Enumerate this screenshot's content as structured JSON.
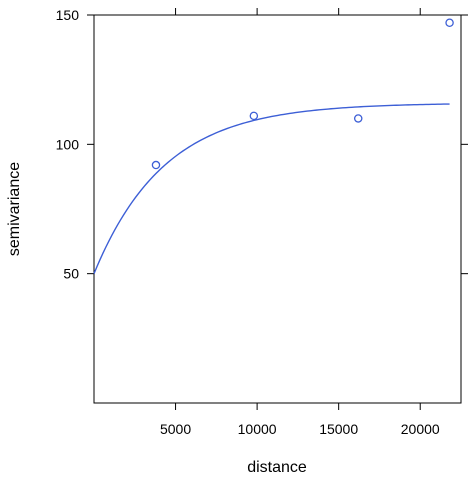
{
  "chart_data": {
    "type": "scatter",
    "title": "",
    "xlabel": "distance",
    "ylabel": "semivariance",
    "xlim": [
      0,
      22500
    ],
    "ylim": [
      0,
      150
    ],
    "x_ticks": [
      {
        "value": 5000,
        "label": "5000"
      },
      {
        "value": 10000,
        "label": "10000"
      },
      {
        "value": 15000,
        "label": "15000"
      },
      {
        "value": 20000,
        "label": "20000"
      }
    ],
    "y_ticks": [
      {
        "value": 50,
        "label": "50"
      },
      {
        "value": 100,
        "label": "100"
      },
      {
        "value": 150,
        "label": "150"
      }
    ],
    "grid": false,
    "points": [
      {
        "x": 3800,
        "y": 92
      },
      {
        "x": 9800,
        "y": 111
      },
      {
        "x": 16200,
        "y": 110
      },
      {
        "x": 21800,
        "y": 147
      }
    ],
    "fitted_curve": {
      "model": "exponential",
      "nugget": 50,
      "partial_sill": 66,
      "range": 4300,
      "x_max": 21800
    },
    "colors": {
      "series": "#3d5fd6",
      "axis": "#000000"
    }
  }
}
